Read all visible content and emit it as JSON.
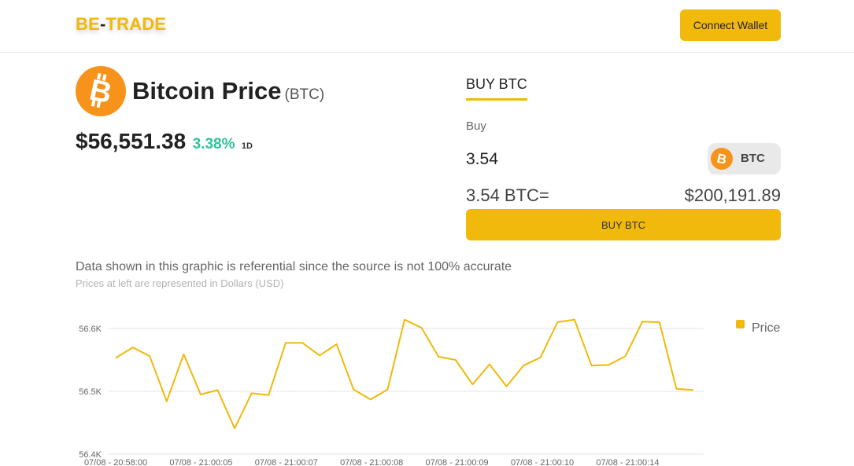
{
  "header": {
    "logo_left": "BE",
    "logo_dash": "-",
    "logo_right": "TRADE",
    "connect_label": "Connect Wallet"
  },
  "coin": {
    "icon": "bitcoin-icon",
    "title": "Bitcoin Price",
    "ticker": "(BTC)",
    "price": "$56,551.38",
    "change": "3.38%",
    "period": "1D"
  },
  "buy_panel": {
    "tab_label": "BUY BTC",
    "field_label": "Buy",
    "amount_value": "3.54",
    "currency_label": "BTC",
    "currency_icon": "bitcoin-icon",
    "conversion_left": "3.54 BTC=",
    "conversion_right": "$200,191.89",
    "buy_button_label": "BUY BTC"
  },
  "notes": {
    "disclaimer": "Data shown in this graphic is referential since the source is not 100% accurate",
    "subnote": "Prices at left are represented in Dollars (USD)"
  },
  "colors": {
    "accent": "#f0b90b",
    "positive": "#2fc39a",
    "bitcoin": "#f7931a"
  },
  "chart_data": {
    "type": "line",
    "ylim": [
      56400,
      56650
    ],
    "yticks": [
      56600,
      56500,
      56400
    ],
    "ytick_labels": [
      "56.6K",
      "56.5K",
      "56.4K"
    ],
    "xtick_labels": [
      "07/08 - 20:58:00",
      "07/08 - 21:00:05",
      "07/08 - 21:00:07",
      "07/08 - 21:00:08",
      "07/08 - 21:00:09",
      "07/08 - 21:00:10",
      "07/08 - 21:00:14"
    ],
    "legend": "top-right",
    "grid": true,
    "series": [
      {
        "name": "Price",
        "color": "#f0b90b",
        "values": [
          56553,
          56570,
          56556,
          56484,
          56559,
          56495,
          56502,
          56441,
          56497,
          56494,
          56577,
          56577,
          56557,
          56575,
          56503,
          56487,
          56503,
          56614,
          56601,
          56555,
          56550,
          56511,
          56543,
          56508,
          56541,
          56554,
          56610,
          56614,
          56541,
          56542,
          56556,
          56611,
          56610,
          56504,
          56502
        ]
      }
    ]
  }
}
